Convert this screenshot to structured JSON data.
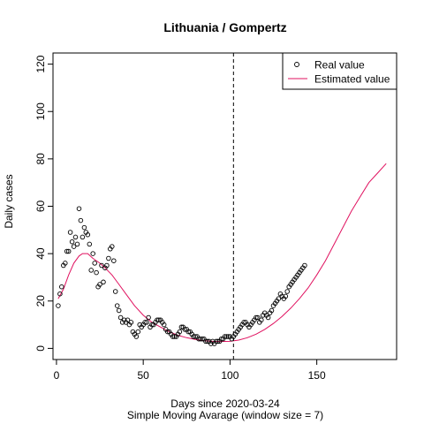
{
  "chart_data": {
    "type": "scatter",
    "title": "Lithuania / Gompertz",
    "xlabel": "Days since 2020-03-24",
    "subtitle": "Simple Moving Avarage (window size = 7)",
    "ylabel": "Daily cases",
    "xlim": [
      -2,
      196
    ],
    "ylim": [
      -4.7,
      124.7
    ],
    "x_ticks": [
      0,
      50,
      100,
      150
    ],
    "y_ticks": [
      0,
      20,
      40,
      60,
      80,
      100,
      120
    ],
    "vline_x": 102,
    "legend": {
      "position": "top-right",
      "entries": [
        "Real value",
        "Estimated value"
      ]
    },
    "series": [
      {
        "name": "Real value",
        "kind": "points",
        "color": "#000000",
        "points": [
          [
            1,
            18
          ],
          [
            2,
            23
          ],
          [
            3,
            26
          ],
          [
            4,
            35
          ],
          [
            5,
            36
          ],
          [
            6,
            41
          ],
          [
            7,
            41
          ],
          [
            8,
            49
          ],
          [
            9,
            45
          ],
          [
            10,
            43
          ],
          [
            11,
            47
          ],
          [
            12,
            44
          ],
          [
            13,
            59
          ],
          [
            14,
            54
          ],
          [
            15,
            47
          ],
          [
            16,
            51
          ],
          [
            17,
            49
          ],
          [
            18,
            48
          ],
          [
            19,
            44
          ],
          [
            20,
            33
          ],
          [
            21,
            40
          ],
          [
            22,
            36
          ],
          [
            23,
            32
          ],
          [
            24,
            26
          ],
          [
            25,
            27
          ],
          [
            26,
            35
          ],
          [
            27,
            28
          ],
          [
            28,
            34
          ],
          [
            29,
            35
          ],
          [
            30,
            38
          ],
          [
            31,
            42
          ],
          [
            32,
            43
          ],
          [
            33,
            37
          ],
          [
            34,
            24
          ],
          [
            35,
            18
          ],
          [
            36,
            16
          ],
          [
            37,
            13
          ],
          [
            38,
            11
          ],
          [
            39,
            12
          ],
          [
            40,
            11
          ],
          [
            41,
            12
          ],
          [
            42,
            10
          ],
          [
            43,
            11
          ],
          [
            44,
            7
          ],
          [
            45,
            6
          ],
          [
            46,
            5
          ],
          [
            47,
            7
          ],
          [
            48,
            10
          ],
          [
            49,
            9
          ],
          [
            50,
            10
          ],
          [
            51,
            11
          ],
          [
            52,
            11
          ],
          [
            53,
            13
          ],
          [
            54,
            9
          ],
          [
            55,
            10
          ],
          [
            56,
            10
          ],
          [
            57,
            11
          ],
          [
            58,
            12
          ],
          [
            59,
            12
          ],
          [
            60,
            12
          ],
          [
            61,
            11
          ],
          [
            62,
            10
          ],
          [
            63,
            8
          ],
          [
            64,
            7
          ],
          [
            65,
            7
          ],
          [
            66,
            6
          ],
          [
            67,
            5
          ],
          [
            68,
            5
          ],
          [
            69,
            5
          ],
          [
            70,
            6
          ],
          [
            71,
            7
          ],
          [
            72,
            9
          ],
          [
            73,
            9
          ],
          [
            74,
            8
          ],
          [
            75,
            8
          ],
          [
            76,
            7
          ],
          [
            77,
            7
          ],
          [
            78,
            6
          ],
          [
            79,
            5
          ],
          [
            80,
            5
          ],
          [
            81,
            5
          ],
          [
            82,
            4
          ],
          [
            83,
            4
          ],
          [
            84,
            4
          ],
          [
            85,
            4
          ],
          [
            86,
            3
          ],
          [
            87,
            3
          ],
          [
            88,
            3
          ],
          [
            89,
            2
          ],
          [
            90,
            3
          ],
          [
            91,
            2
          ],
          [
            92,
            3
          ],
          [
            93,
            3
          ],
          [
            94,
            3
          ],
          [
            95,
            4
          ],
          [
            96,
            4
          ],
          [
            97,
            5
          ],
          [
            98,
            5
          ],
          [
            99,
            5
          ],
          [
            100,
            5
          ],
          [
            101,
            4
          ],
          [
            102,
            5
          ],
          [
            103,
            6
          ],
          [
            104,
            7
          ],
          [
            105,
            8
          ],
          [
            106,
            9
          ],
          [
            107,
            10
          ],
          [
            108,
            11
          ],
          [
            109,
            11
          ],
          [
            110,
            10
          ],
          [
            111,
            9
          ],
          [
            112,
            10
          ],
          [
            113,
            11
          ],
          [
            114,
            12
          ],
          [
            115,
            13
          ],
          [
            116,
            13
          ],
          [
            117,
            11
          ],
          [
            118,
            12
          ],
          [
            119,
            14
          ],
          [
            120,
            15
          ],
          [
            121,
            14
          ],
          [
            122,
            13
          ],
          [
            123,
            15
          ],
          [
            124,
            16
          ],
          [
            125,
            18
          ],
          [
            126,
            19
          ],
          [
            127,
            20
          ],
          [
            128,
            21
          ],
          [
            129,
            23
          ],
          [
            130,
            22
          ],
          [
            131,
            21
          ],
          [
            132,
            22
          ],
          [
            133,
            24
          ],
          [
            134,
            26
          ],
          [
            135,
            27
          ],
          [
            136,
            28
          ],
          [
            137,
            29
          ],
          [
            138,
            30
          ],
          [
            139,
            31
          ],
          [
            140,
            32
          ],
          [
            141,
            33
          ],
          [
            142,
            34
          ],
          [
            143,
            35
          ]
        ]
      },
      {
        "name": "Estimated value",
        "kind": "line",
        "color": "#e0115f",
        "points": [
          [
            1,
            21
          ],
          [
            4,
            25
          ],
          [
            7,
            31
          ],
          [
            10,
            36
          ],
          [
            13,
            39
          ],
          [
            15,
            40
          ],
          [
            18,
            40
          ],
          [
            21,
            38
          ],
          [
            25,
            36
          ],
          [
            28,
            34
          ],
          [
            32,
            31
          ],
          [
            36,
            27
          ],
          [
            40,
            23
          ],
          [
            45,
            18
          ],
          [
            50,
            14
          ],
          [
            55,
            11
          ],
          [
            60,
            9
          ],
          [
            65,
            7
          ],
          [
            70,
            5.5
          ],
          [
            75,
            4.5
          ],
          [
            80,
            3.8
          ],
          [
            85,
            3.2
          ],
          [
            90,
            3
          ],
          [
            95,
            2.9
          ],
          [
            100,
            3
          ],
          [
            105,
            3.5
          ],
          [
            110,
            4.5
          ],
          [
            115,
            6
          ],
          [
            120,
            8
          ],
          [
            125,
            10.5
          ],
          [
            130,
            13.5
          ],
          [
            135,
            17
          ],
          [
            140,
            21
          ],
          [
            145,
            25.5
          ],
          [
            150,
            31
          ],
          [
            155,
            37
          ],
          [
            160,
            44
          ],
          [
            165,
            51
          ],
          [
            170,
            58
          ],
          [
            175,
            64
          ],
          [
            180,
            70
          ],
          [
            185,
            74
          ],
          [
            190,
            78
          ]
        ]
      }
    ]
  }
}
